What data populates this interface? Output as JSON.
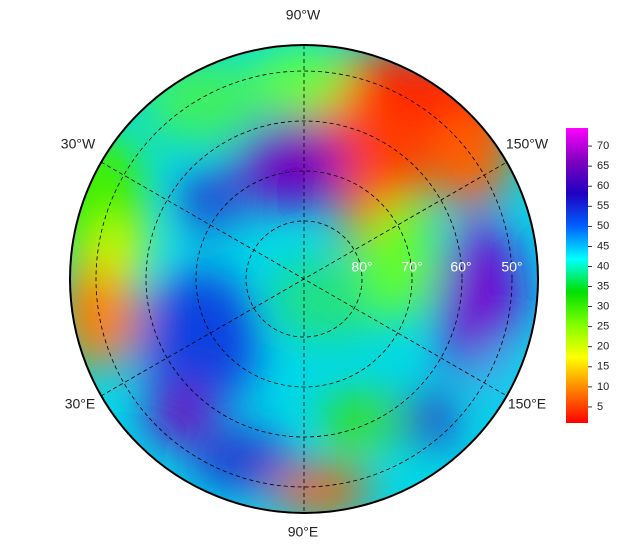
{
  "map": {
    "longitude_labels": [
      "90°W",
      "30°W",
      "150°W",
      "30°E",
      "150°E",
      "90°E"
    ],
    "latitude_labels": [
      "80°",
      "70°",
      "60°",
      "50°"
    ]
  },
  "colorbar": {
    "lim": [
      1,
      74.5
    ],
    "ticks": [
      5,
      10,
      15,
      20,
      25,
      30,
      35,
      40,
      45,
      50,
      55,
      60,
      65,
      70
    ],
    "colors": [
      "#ff0000",
      "#ff8000",
      "#ffff00",
      "#80ff00",
      "#00e000",
      "#00ffff",
      "#0060ff",
      "#2000c0",
      "#8000c0",
      "#ff00ff"
    ]
  }
}
